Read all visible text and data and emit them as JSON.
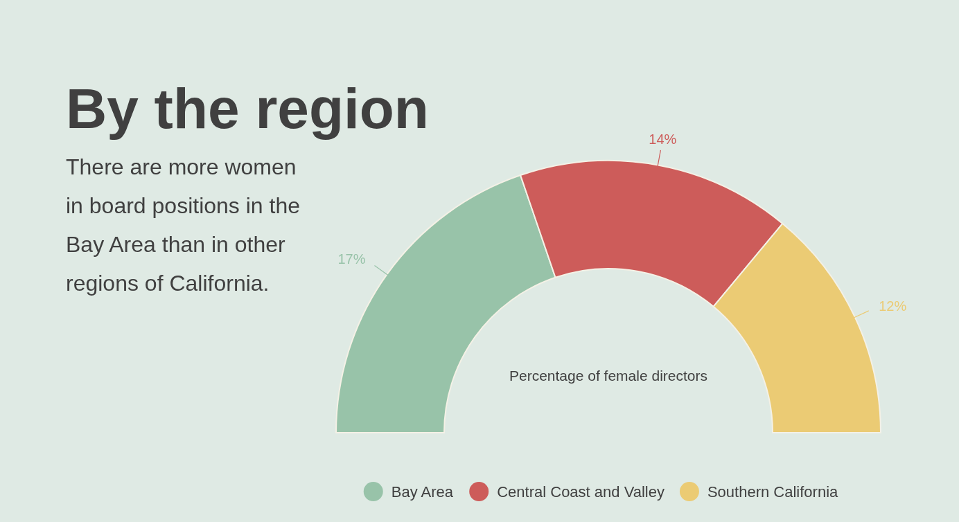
{
  "chart_data": {
    "type": "donut",
    "title": "By the region",
    "subtitle": "There are more women in board positions in the Bay Area than in other regions of California.",
    "categories": [
      "Bay Area",
      "Central Coast and Valley",
      "Southern California"
    ],
    "values": [
      17,
      14,
      12
    ],
    "value_labels": [
      "17%",
      "14%",
      "12%"
    ],
    "colors": [
      "#98c3a9",
      "#cd5c5a",
      "#ebcb74"
    ],
    "annotations": [
      "Percentage of female directors"
    ],
    "legend": "bottom"
  }
}
